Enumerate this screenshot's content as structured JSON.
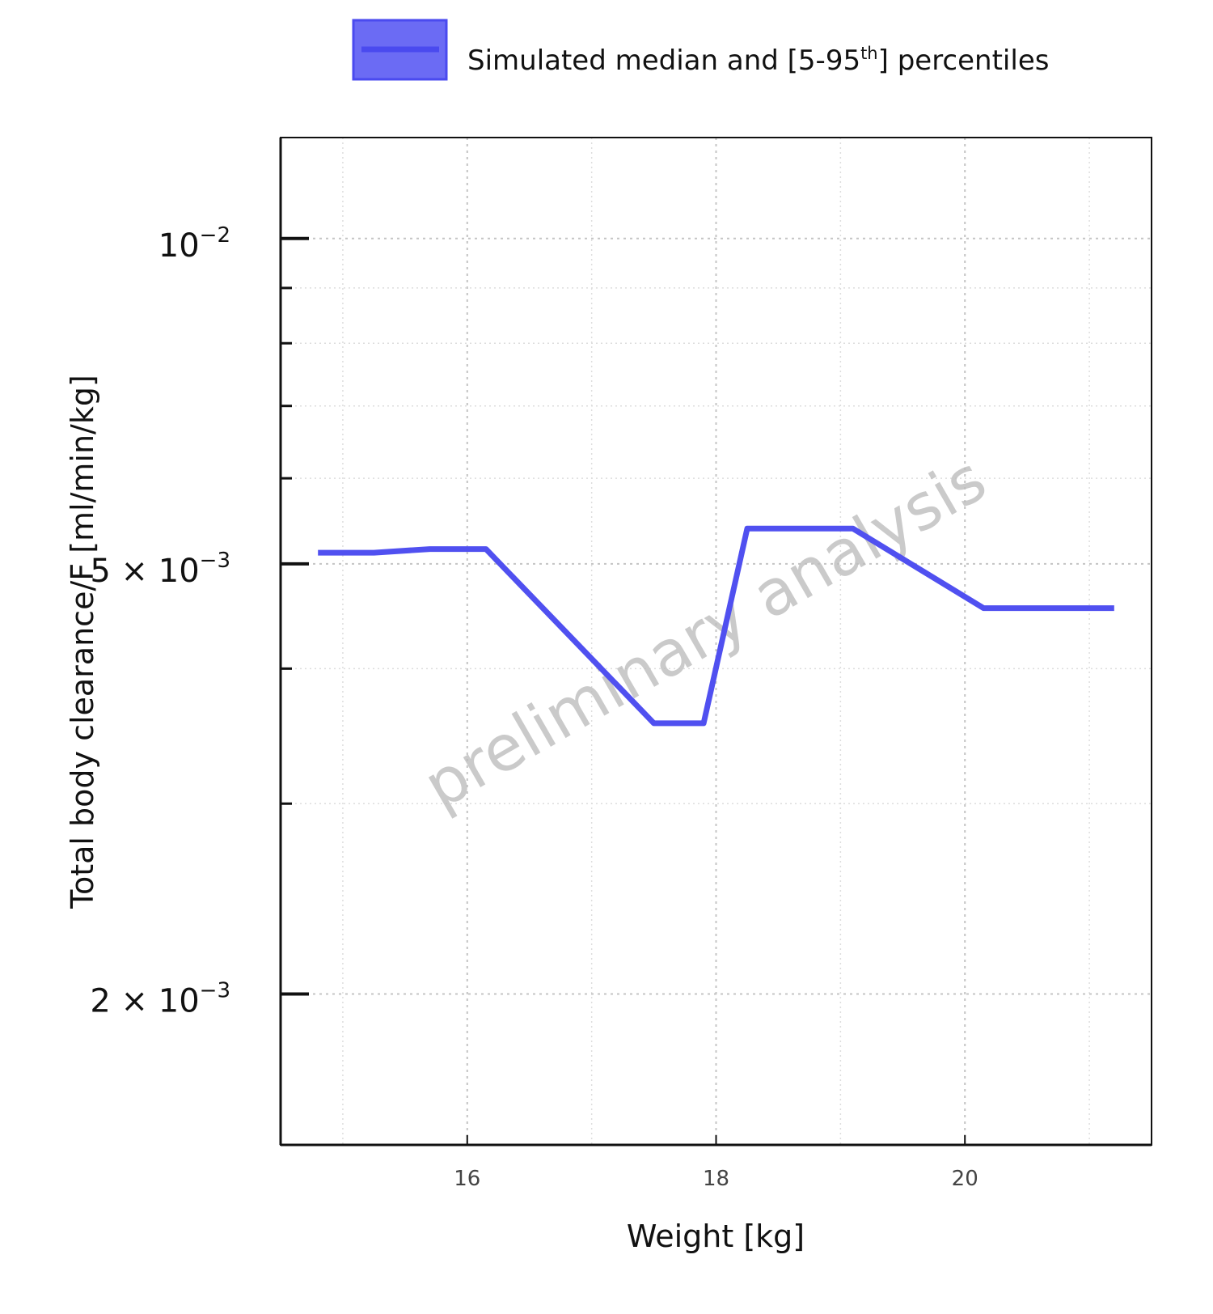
{
  "chart_data": {
    "type": "line",
    "xlabel": "Weight [kg]",
    "ylabel": "Total body clearance/F [ml/min/kg]",
    "x_scale": "linear",
    "y_scale": "log",
    "xlim": [
      14.5,
      21.5
    ],
    "ylim": [
      0.00145,
      0.0124
    ],
    "x_ticks": [
      16,
      18,
      20
    ],
    "x_tick_labels": [
      "16",
      "18",
      "20"
    ],
    "x_minor_ticks": [
      15,
      17,
      19,
      21
    ],
    "y_ticks": [
      {
        "value": 0.01,
        "base": "10",
        "exponent": "−2"
      },
      {
        "value": 0.005,
        "base": "5 × 10",
        "exponent": "−3"
      },
      {
        "value": 0.002,
        "base": "2 × 10",
        "exponent": "−3"
      }
    ],
    "y_minor_ticks": [
      0.003,
      0.004,
      0.006,
      0.007,
      0.008,
      0.009
    ],
    "grid": true,
    "legend": {
      "position": "top",
      "label_prefix": "Simulated median and [5-95",
      "label_sup": "th",
      "label_suffix": "] percentiles"
    },
    "watermark": "preliminary analysis",
    "series": [
      {
        "color": "#5050f0",
        "x": [
          14.8,
          15.25,
          15.7,
          16.15,
          17.5,
          17.9,
          18.25,
          19.1,
          20.15,
          21.2
        ],
        "y": [
          0.00512,
          0.00512,
          0.00516,
          0.00516,
          0.00356,
          0.00356,
          0.00539,
          0.00539,
          0.00455,
          0.00455
        ]
      }
    ]
  }
}
